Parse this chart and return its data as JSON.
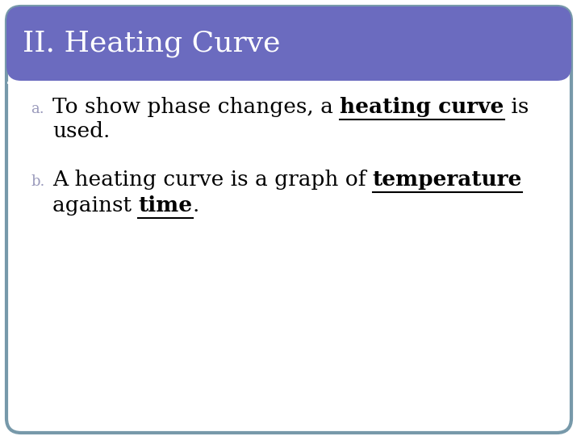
{
  "title": "II. Heating Curve",
  "title_bg_color": "#6B6BBF",
  "title_text_color": "#ffffff",
  "body_bg_color": "#ffffff",
  "border_color": "#7799AA",
  "font_size_title": 26,
  "font_size_body": 19,
  "font_size_label": 13,
  "label_color": "#9999BB",
  "text_color": "#000000",
  "font_family": "DejaVu Serif",
  "title_font_weight": "normal",
  "bullet_a_label": "a.",
  "bullet_b_label": "b.",
  "a_line1_seg1": "To show phase changes, a ",
  "a_line1_seg2": "heating curve",
  "a_line1_seg3": " is",
  "a_line2": "used.",
  "b_line1_seg1": "A heating curve is a graph of ",
  "b_line1_seg2": "temperature",
  "b_line2_seg1": "against ",
  "b_line2_seg2": "time",
  "b_line2_seg3": "."
}
